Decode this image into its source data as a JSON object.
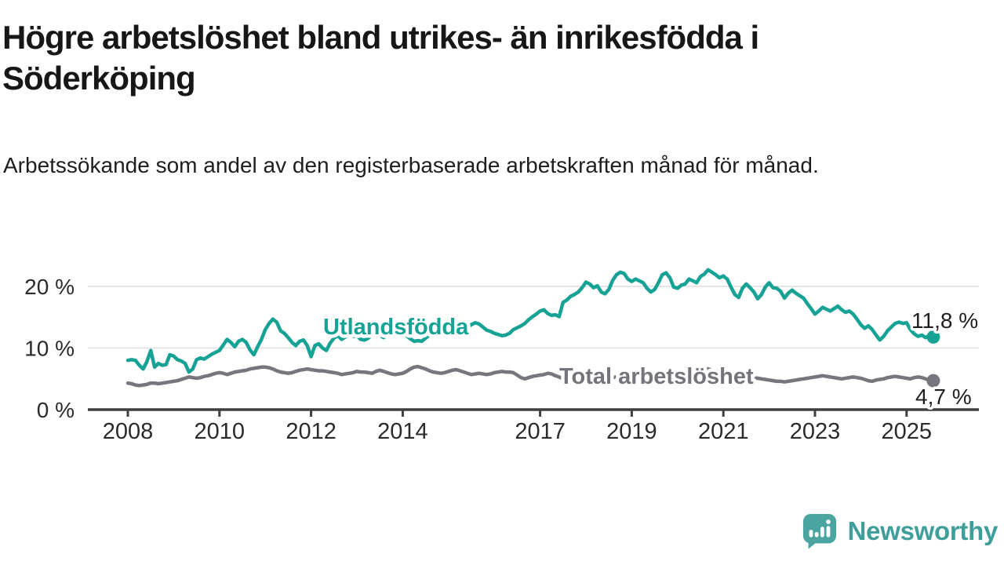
{
  "title": "Högre arbetslöshet bland utrikes- än inrikesfödda i Söderköping",
  "subtitle": "Arbetssökande som andel av den registerbaserade arbetskraften månad för månad.",
  "logo": {
    "text": "Newsworthy",
    "text_color": "#3f9e9a",
    "icon_color": "#4aa5a0"
  },
  "chart_data": {
    "type": "line",
    "title": "Högre arbetslöshet bland utrikes- än inrikesfödda i Söderköping",
    "subtitle": "Arbetssökande som andel av den registerbaserade arbetskraften månad för månad.",
    "frequency": "monthly",
    "x_start": "2008-01",
    "x_end": "2025-08",
    "x_ticks": [
      "2008",
      "2010",
      "2012",
      "2014",
      "2017",
      "2019",
      "2021",
      "2023",
      "2025"
    ],
    "y_ticks": [
      {
        "value": 0,
        "label": "0 %"
      },
      {
        "value": 10,
        "label": "10 %"
      },
      {
        "value": 20,
        "label": "20 %"
      }
    ],
    "ylim": [
      0,
      24
    ],
    "grid": "horizontal",
    "legend_position": "inline-labels",
    "series": [
      {
        "name": "Utlandsfödda",
        "color": "#16a295",
        "end_label": "11,8 %",
        "end_value": 11.8,
        "values": [
          8.0,
          8.1,
          8.0,
          7.2,
          6.6,
          7.8,
          9.6,
          6.9,
          7.5,
          7.2,
          7.3,
          8.9,
          8.7,
          8.1,
          7.9,
          7.5,
          6.1,
          6.6,
          8.1,
          8.4,
          8.2,
          8.6,
          9.0,
          9.3,
          9.6,
          10.5,
          11.4,
          10.9,
          10.2,
          11.1,
          11.4,
          10.9,
          9.7,
          8.9,
          10.2,
          11.4,
          13.0,
          14.0,
          14.7,
          14.2,
          12.8,
          12.4,
          11.7,
          10.9,
          10.4,
          11.1,
          11.3,
          10.4,
          8.6,
          10.4,
          10.7,
          10.0,
          9.6,
          10.8,
          11.6,
          12.0,
          11.4,
          11.8,
          12.2,
          11.9,
          12.0,
          11.4,
          11.3,
          11.6,
          12.2,
          12.5,
          12.1,
          11.7,
          12.3,
          12.6,
          12.2,
          12.8,
          12.5,
          12.0,
          11.5,
          11.1,
          11.2,
          11.1,
          11.6,
          12.1,
          12.4,
          12.0,
          12.5,
          12.9,
          13.0,
          12.6,
          12.3,
          12.7,
          13.1,
          13.4,
          13.8,
          14.1,
          13.9,
          13.4,
          12.9,
          12.7,
          12.4,
          12.2,
          12.0,
          12.1,
          12.4,
          13.0,
          13.3,
          13.6,
          14.0,
          14.6,
          15.1,
          15.5,
          16.0,
          16.2,
          15.6,
          15.3,
          15.4,
          15.1,
          17.4,
          17.8,
          18.4,
          18.7,
          19.1,
          19.8,
          20.7,
          20.4,
          19.8,
          20.1,
          19.1,
          18.8,
          19.5,
          21.0,
          21.9,
          22.3,
          22.1,
          21.2,
          20.8,
          21.2,
          20.9,
          20.6,
          19.7,
          19.1,
          19.5,
          20.6,
          21.9,
          22.2,
          21.4,
          19.9,
          19.7,
          20.2,
          20.4,
          21.2,
          20.9,
          20.6,
          21.6,
          22.0,
          22.7,
          22.3,
          21.9,
          21.4,
          21.7,
          21.2,
          19.9,
          18.7,
          18.2,
          19.7,
          20.4,
          19.8,
          19.1,
          18.0,
          18.7,
          19.9,
          20.6,
          19.8,
          19.7,
          19.2,
          18.1,
          18.9,
          19.4,
          18.9,
          18.5,
          18.1,
          17.2,
          16.4,
          15.5,
          16.0,
          16.6,
          16.3,
          16.0,
          16.4,
          16.8,
          16.2,
          15.8,
          16.0,
          15.5,
          14.7,
          13.8,
          13.2,
          13.6,
          13.0,
          12.1,
          11.3,
          11.9,
          12.8,
          13.4,
          14.0,
          14.2,
          14.0,
          14.1,
          13.0,
          12.3,
          11.9,
          12.1,
          11.7,
          12.0,
          11.8
        ]
      },
      {
        "name": "Total arbetslöshet",
        "color": "#77757e",
        "end_label": "4,7 %",
        "end_value": 4.7,
        "values": [
          4.3,
          4.2,
          4.0,
          3.9,
          4.0,
          4.1,
          4.3,
          4.3,
          4.2,
          4.3,
          4.4,
          4.5,
          4.6,
          4.7,
          4.9,
          5.1,
          5.3,
          5.2,
          5.1,
          5.2,
          5.4,
          5.5,
          5.7,
          5.9,
          6.0,
          5.9,
          5.7,
          5.9,
          6.1,
          6.2,
          6.3,
          6.4,
          6.6,
          6.7,
          6.8,
          6.9,
          6.9,
          6.8,
          6.6,
          6.3,
          6.1,
          6.0,
          5.9,
          6.0,
          6.2,
          6.4,
          6.5,
          6.6,
          6.5,
          6.4,
          6.3,
          6.3,
          6.2,
          6.1,
          6.0,
          5.9,
          5.7,
          5.8,
          5.9,
          6.0,
          6.2,
          6.1,
          6.1,
          6.0,
          5.9,
          6.2,
          6.4,
          6.2,
          6.0,
          5.8,
          5.7,
          5.8,
          5.9,
          6.2,
          6.6,
          6.9,
          7.0,
          6.8,
          6.6,
          6.3,
          6.1,
          6.0,
          5.9,
          6.0,
          6.2,
          6.4,
          6.5,
          6.3,
          6.1,
          5.9,
          5.7,
          5.8,
          5.9,
          5.8,
          5.7,
          5.8,
          6.0,
          6.1,
          6.2,
          6.1,
          6.1,
          6.0,
          5.6,
          5.2,
          5.0,
          5.2,
          5.4,
          5.5,
          5.6,
          5.7,
          5.9,
          5.8,
          5.5,
          5.3,
          5.0,
          4.8,
          4.7,
          4.8,
          5.0,
          5.2,
          5.3,
          5.4,
          5.5,
          5.4,
          5.3,
          5.2,
          5.1,
          5.2,
          5.3,
          5.4,
          5.3,
          5.2,
          5.3,
          5.4,
          5.5,
          5.6,
          5.5,
          5.4,
          5.5,
          5.6,
          5.7,
          5.8,
          5.7,
          5.8,
          5.9,
          6.0,
          6.3,
          6.6,
          6.8,
          6.9,
          6.8,
          6.7,
          6.6,
          6.4,
          6.2,
          6.1,
          6.0,
          5.9,
          5.8,
          5.7,
          5.6,
          5.5,
          5.4,
          5.3,
          5.2,
          5.1,
          5.0,
          4.9,
          4.8,
          4.7,
          4.6,
          4.6,
          4.5,
          4.6,
          4.7,
          4.8,
          4.9,
          5.0,
          5.1,
          5.2,
          5.3,
          5.4,
          5.5,
          5.4,
          5.3,
          5.2,
          5.1,
          5.0,
          5.1,
          5.2,
          5.3,
          5.2,
          5.1,
          4.9,
          4.7,
          4.6,
          4.8,
          4.9,
          5.0,
          5.2,
          5.3,
          5.4,
          5.3,
          5.2,
          5.1,
          5.0,
          5.2,
          5.3,
          5.2,
          5.0,
          4.8,
          4.7
        ]
      }
    ]
  }
}
